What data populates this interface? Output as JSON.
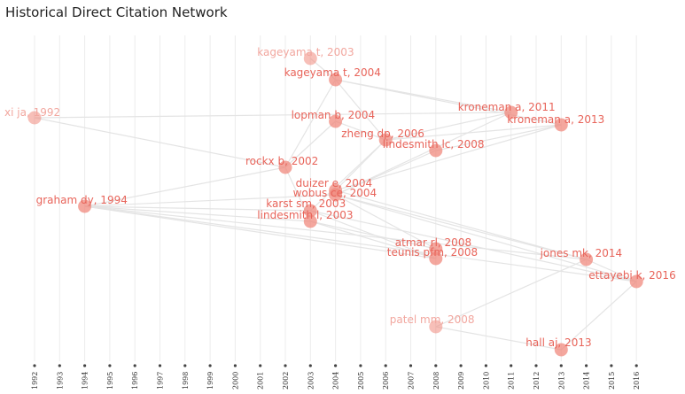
{
  "chart_data": {
    "type": "network",
    "title": "Historical Direct Citation Network",
    "x_axis": {
      "ticks": [
        1992,
        1993,
        1994,
        1995,
        1996,
        1997,
        1998,
        1999,
        2000,
        2001,
        2002,
        2003,
        2004,
        2005,
        2006,
        2007,
        2008,
        2009,
        2010,
        2011,
        2012,
        2013,
        2014,
        2015,
        2016
      ]
    },
    "nodes": [
      {
        "id": "kageyama2003",
        "label": "kageyama t, 2003",
        "year": 2003,
        "faded": true
      },
      {
        "id": "kageyama2004",
        "label": "kageyama t, 2004",
        "year": 2004,
        "faded": false
      },
      {
        "id": "xi1992",
        "label": "xi ja, 1992",
        "year": 1992,
        "faded": true
      },
      {
        "id": "kroneman2011",
        "label": "kroneman a, 2011",
        "year": 2011,
        "faded": false
      },
      {
        "id": "kroneman2013",
        "label": "kroneman a, 2013",
        "year": 2013,
        "faded": false
      },
      {
        "id": "lopman2004",
        "label": "lopman b, 2004",
        "year": 2004,
        "faded": false
      },
      {
        "id": "zheng2006",
        "label": "zheng dp, 2006",
        "year": 2006,
        "faded": false
      },
      {
        "id": "lindesmith2008",
        "label": "lindesmith lc, 2008",
        "year": 2008,
        "faded": false
      },
      {
        "id": "rockx2002",
        "label": "rockx b, 2002",
        "year": 2002,
        "faded": false
      },
      {
        "id": "duizer2004",
        "label": "duizer e, 2004",
        "year": 2004,
        "faded": false
      },
      {
        "id": "wobus2004",
        "label": "wobus ce, 2004",
        "year": 2004,
        "faded": false
      },
      {
        "id": "graham1994",
        "label": "graham dy, 1994",
        "year": 1994,
        "faded": false
      },
      {
        "id": "karst2003",
        "label": "karst sm, 2003",
        "year": 2003,
        "faded": false
      },
      {
        "id": "lindesmith2003",
        "label": "lindesmith l, 2003",
        "year": 2003,
        "faded": false
      },
      {
        "id": "atmar2008",
        "label": "atmar rl, 2008",
        "year": 2008,
        "faded": false
      },
      {
        "id": "teunis2008",
        "label": "teunis pfm, 2008",
        "year": 2008,
        "faded": false
      },
      {
        "id": "jones2014",
        "label": "jones mk, 2014",
        "year": 2014,
        "faded": false
      },
      {
        "id": "ettayebi2016",
        "label": "ettayebi k, 2016",
        "year": 2016,
        "faded": false
      },
      {
        "id": "patel2008",
        "label": "patel mm, 2008",
        "year": 2008,
        "faded": true
      },
      {
        "id": "hall2013",
        "label": "hall aj, 2013",
        "year": 2013,
        "faded": false
      }
    ],
    "edges": [
      [
        "kageyama2003",
        "kageyama2004"
      ],
      [
        "xi1992",
        "kroneman2011"
      ],
      [
        "xi1992",
        "rockx2002"
      ],
      [
        "kageyama2004",
        "kroneman2011"
      ],
      [
        "kageyama2004",
        "kroneman2013"
      ],
      [
        "kageyama2004",
        "zheng2006"
      ],
      [
        "kageyama2004",
        "rockx2002"
      ],
      [
        "lopman2004",
        "zheng2006"
      ],
      [
        "lopman2004",
        "rockx2002"
      ],
      [
        "zheng2006",
        "kroneman2011"
      ],
      [
        "zheng2006",
        "kroneman2013"
      ],
      [
        "lindesmith2008",
        "kroneman2013"
      ],
      [
        "lindesmith2008",
        "wobus2004"
      ],
      [
        "zheng2006",
        "duizer2004"
      ],
      [
        "zheng2006",
        "karst2003"
      ],
      [
        "kroneman2011",
        "wobus2004"
      ],
      [
        "kroneman2013",
        "duizer2004"
      ],
      [
        "rockx2002",
        "graham1994"
      ],
      [
        "rockx2002",
        "lindesmith2003"
      ],
      [
        "graham1994",
        "wobus2004"
      ],
      [
        "graham1994",
        "karst2003"
      ],
      [
        "graham1994",
        "lindesmith2003"
      ],
      [
        "graham1994",
        "teunis2008"
      ],
      [
        "graham1994",
        "jones2014"
      ],
      [
        "graham1994",
        "ettayebi2016"
      ],
      [
        "wobus2004",
        "jones2014"
      ],
      [
        "wobus2004",
        "ettayebi2016"
      ],
      [
        "wobus2004",
        "atmar2008"
      ],
      [
        "karst2003",
        "ettayebi2016"
      ],
      [
        "karst2003",
        "teunis2008"
      ],
      [
        "lindesmith2003",
        "teunis2008"
      ],
      [
        "lindesmith2003",
        "atmar2008"
      ],
      [
        "duizer2004",
        "jones2014"
      ],
      [
        "jones2014",
        "ettayebi2016"
      ],
      [
        "jones2014",
        "patel2008"
      ],
      [
        "ettayebi2016",
        "hall2013"
      ],
      [
        "patel2008",
        "hall2013"
      ],
      [
        "atmar2008",
        "teunis2008"
      ]
    ],
    "colors": {
      "node": "#f08a7e",
      "label": "#e8645a",
      "label_faded": "#f2a79f",
      "edge": "#e4e4e4",
      "grid": "#ececec"
    }
  }
}
